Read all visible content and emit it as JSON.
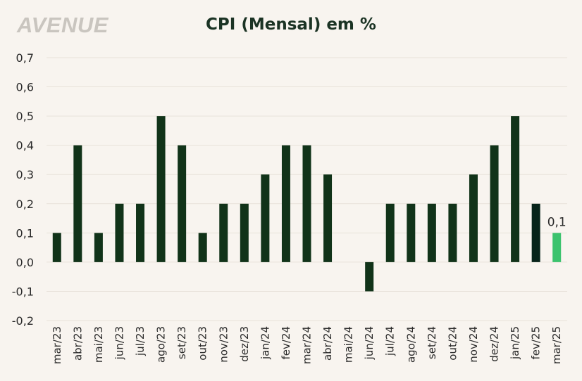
{
  "logo": "AVENUE",
  "chart_data": {
    "type": "bar",
    "title": "CPI (Mensal) em %",
    "categories": [
      "mar/23",
      "abr/23",
      "mai/23",
      "jun/23",
      "jul/23",
      "ago/23",
      "set/23",
      "out/23",
      "nov/23",
      "dez/23",
      "jan/24",
      "fev/24",
      "mar/24",
      "abr/24",
      "mai/24",
      "jun/24",
      "jul/24",
      "ago/24",
      "set/24",
      "out/24",
      "nov/24",
      "dez/24",
      "jan/25",
      "fev/25",
      "mar/25"
    ],
    "values": [
      0.1,
      0.4,
      0.1,
      0.2,
      0.2,
      0.5,
      0.4,
      0.1,
      0.2,
      0.2,
      0.3,
      0.4,
      0.4,
      0.3,
      0.0,
      -0.1,
      0.2,
      0.2,
      0.2,
      0.2,
      0.3,
      0.4,
      0.5,
      0.2,
      0.1
    ],
    "ylim": [
      -0.2,
      0.7
    ],
    "yticks": [
      -0.2,
      -0.1,
      0.0,
      0.1,
      0.2,
      0.3,
      0.4,
      0.5,
      0.6,
      0.7
    ],
    "ytick_labels": [
      "-0,2",
      "-0,1",
      "0,0",
      "0,1",
      "0,2",
      "0,3",
      "0,4",
      "0,5",
      "0,6",
      "0,7"
    ],
    "grid": true,
    "annotations": [
      {
        "category": "mar/25",
        "text": "0,1"
      }
    ],
    "colors": {
      "default": "#113319",
      "highlight_prev": "#07241a",
      "highlight_last": "#3cc36e",
      "grid": "#e8e2da"
    }
  }
}
